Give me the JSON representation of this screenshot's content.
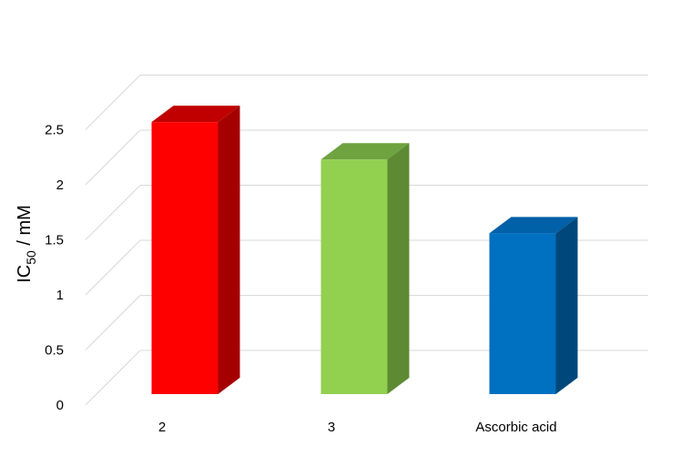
{
  "chart_data": {
    "type": "bar",
    "title": "",
    "xlabel": "",
    "ylabel": "IC50 / mM",
    "ylabel_main": "IC",
    "ylabel_sub": "50",
    "ylabel_rest": " / mM",
    "categories": [
      "2",
      "3",
      "Ascorbic acid"
    ],
    "values": [
      2.47,
      2.13,
      1.46
    ],
    "colors": {
      "front": [
        "#ff0000",
        "#92d050",
        "#0070c0"
      ],
      "side": [
        "#a50000",
        "#5e8a34",
        "#00487c"
      ],
      "top": [
        "#c00000",
        "#6ea33f",
        "#0060a8"
      ]
    },
    "ylim": [
      0,
      2.5
    ],
    "yticks": [
      "0",
      "0.5",
      "1",
      "1.5",
      "2",
      "2.5"
    ],
    "grid": true,
    "legend": "none"
  }
}
